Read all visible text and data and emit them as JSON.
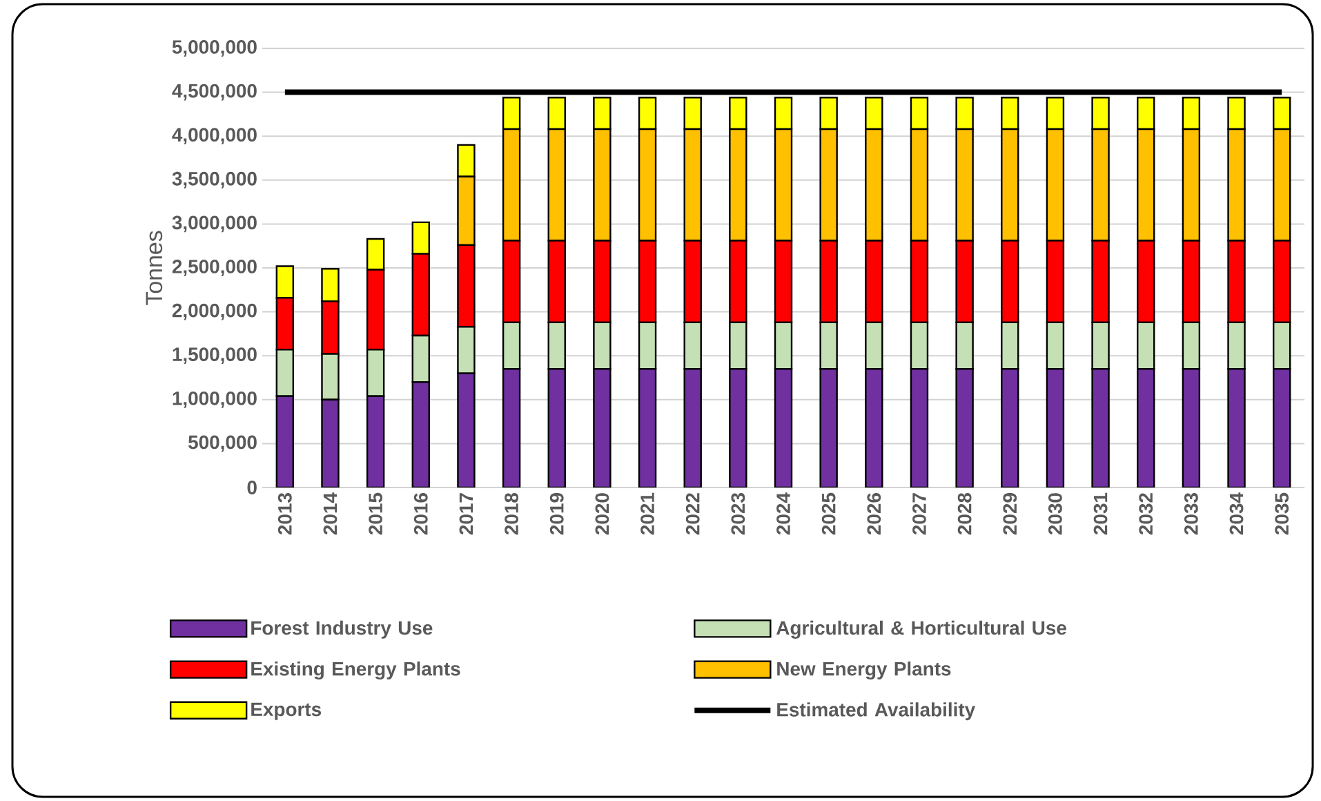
{
  "chart_data": {
    "type": "bar",
    "stacked": true,
    "ylabel": "Tonnes",
    "grid": "y",
    "legend": "bottom",
    "categories": [
      "2013",
      "2014",
      "2015",
      "2016",
      "2017",
      "2018",
      "2019",
      "2020",
      "2021",
      "2022",
      "2023",
      "2024",
      "2025",
      "2026",
      "2027",
      "2028",
      "2029",
      "2030",
      "2031",
      "2032",
      "2033",
      "2034",
      "2035"
    ],
    "ylim": [
      0,
      5000000
    ],
    "yticks": [
      {
        "value": 0,
        "label": "0"
      },
      {
        "value": 500000,
        "label": "500,000"
      },
      {
        "value": 1000000,
        "label": "1,000,000"
      },
      {
        "value": 1500000,
        "label": "1,500,000"
      },
      {
        "value": 2000000,
        "label": "2,000,000"
      },
      {
        "value": 2500000,
        "label": "2,500,000"
      },
      {
        "value": 3000000,
        "label": "3,000,000"
      },
      {
        "value": 3500000,
        "label": "3,500,000"
      },
      {
        "value": 4000000,
        "label": "4,000,000"
      },
      {
        "value": 4500000,
        "label": "4,500,000"
      },
      {
        "value": 5000000,
        "label": "5,000,000"
      }
    ],
    "series": [
      {
        "name": "Forest Industry Use",
        "color": "#7030a0",
        "values": [
          1040000,
          1000000,
          1040000,
          1200000,
          1300000,
          1350000,
          1350000,
          1350000,
          1350000,
          1350000,
          1350000,
          1350000,
          1350000,
          1350000,
          1350000,
          1350000,
          1350000,
          1350000,
          1350000,
          1350000,
          1350000,
          1350000,
          1350000
        ]
      },
      {
        "name": "Agricultural & Horticultural Use",
        "color": "#c5e0b4",
        "values": [
          530000,
          520000,
          530000,
          530000,
          530000,
          530000,
          530000,
          530000,
          530000,
          530000,
          530000,
          530000,
          530000,
          530000,
          530000,
          530000,
          530000,
          530000,
          530000,
          530000,
          530000,
          530000,
          530000
        ]
      },
      {
        "name": "Existing Energy Plants",
        "color": "#ff0000",
        "values": [
          590000,
          600000,
          910000,
          930000,
          930000,
          930000,
          930000,
          930000,
          930000,
          930000,
          930000,
          930000,
          930000,
          930000,
          930000,
          930000,
          930000,
          930000,
          930000,
          930000,
          930000,
          930000,
          930000
        ]
      },
      {
        "name": "New Energy Plants",
        "color": "#ffc000",
        "values": [
          0,
          0,
          0,
          0,
          780000,
          1270000,
          1270000,
          1270000,
          1270000,
          1270000,
          1270000,
          1270000,
          1270000,
          1270000,
          1270000,
          1270000,
          1270000,
          1270000,
          1270000,
          1270000,
          1270000,
          1270000,
          1270000
        ]
      },
      {
        "name": "Exports",
        "color": "#ffff00",
        "values": [
          360000,
          370000,
          350000,
          360000,
          360000,
          360000,
          360000,
          360000,
          360000,
          360000,
          360000,
          360000,
          360000,
          360000,
          360000,
          360000,
          360000,
          360000,
          360000,
          360000,
          360000,
          360000,
          360000
        ]
      },
      {
        "name": "Estimated Availability",
        "type": "line",
        "color": "#000000",
        "values": [
          4500000,
          4500000,
          4500000,
          4500000,
          4500000,
          4500000,
          4500000,
          4500000,
          4500000,
          4500000,
          4500000,
          4500000,
          4500000,
          4500000,
          4500000,
          4500000,
          4500000,
          4500000,
          4500000,
          4500000,
          4500000,
          4500000,
          4500000
        ]
      }
    ]
  }
}
